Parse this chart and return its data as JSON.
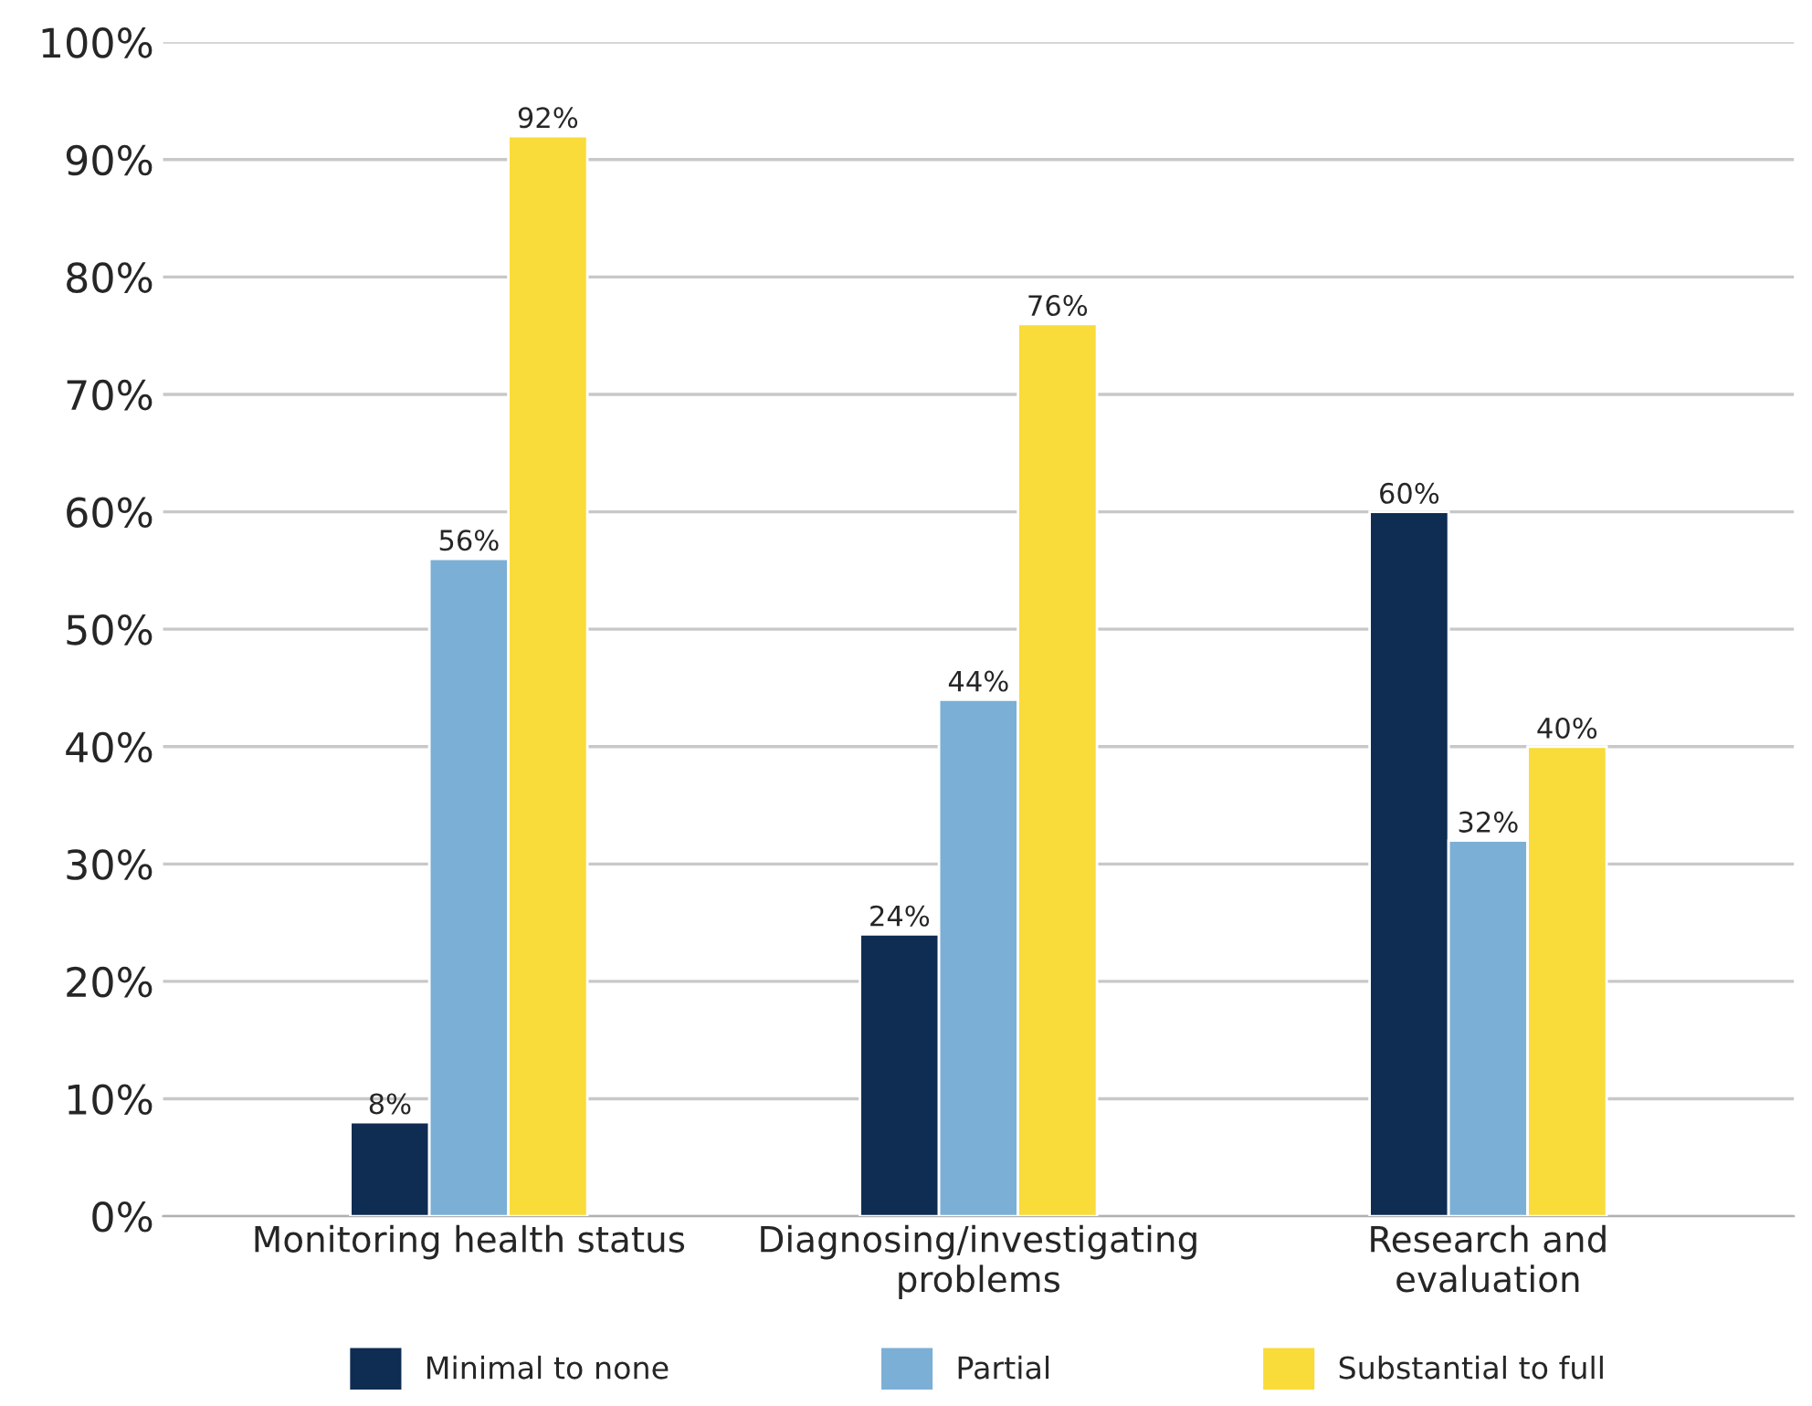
{
  "chart_data": {
    "type": "bar",
    "categories": [
      "Monitoring health status",
      "Diagnosing/investigating\nproblems",
      "Research and\nevaluation"
    ],
    "series": [
      {
        "name": "Minimal to none",
        "color": "#0f2c52",
        "values": [
          8,
          24,
          60
        ],
        "value_labels": [
          "8%",
          "24%",
          "60%"
        ]
      },
      {
        "name": "Partial",
        "color": "#7bafd6",
        "values": [
          56,
          44,
          32
        ],
        "value_labels": [
          "56%",
          "44%",
          "32%"
        ]
      },
      {
        "name": "Substantial to full",
        "color": "#f9db3a",
        "values": [
          92,
          76,
          40
        ],
        "value_labels": [
          "92%",
          "76%",
          "40%"
        ]
      }
    ],
    "ylim": [
      0,
      100
    ],
    "yticks": [
      {
        "value": 0,
        "label": "0%"
      },
      {
        "value": 10,
        "label": "10%"
      },
      {
        "value": 20,
        "label": "20%"
      },
      {
        "value": 30,
        "label": "30%"
      },
      {
        "value": 40,
        "label": "40%"
      },
      {
        "value": 50,
        "label": "50%"
      },
      {
        "value": 60,
        "label": "60%"
      },
      {
        "value": 70,
        "label": "70%"
      },
      {
        "value": 80,
        "label": "80%"
      },
      {
        "value": 90,
        "label": "90%"
      },
      {
        "value": 100,
        "label": "100%"
      }
    ],
    "grid": "y",
    "legend": "bottom"
  }
}
